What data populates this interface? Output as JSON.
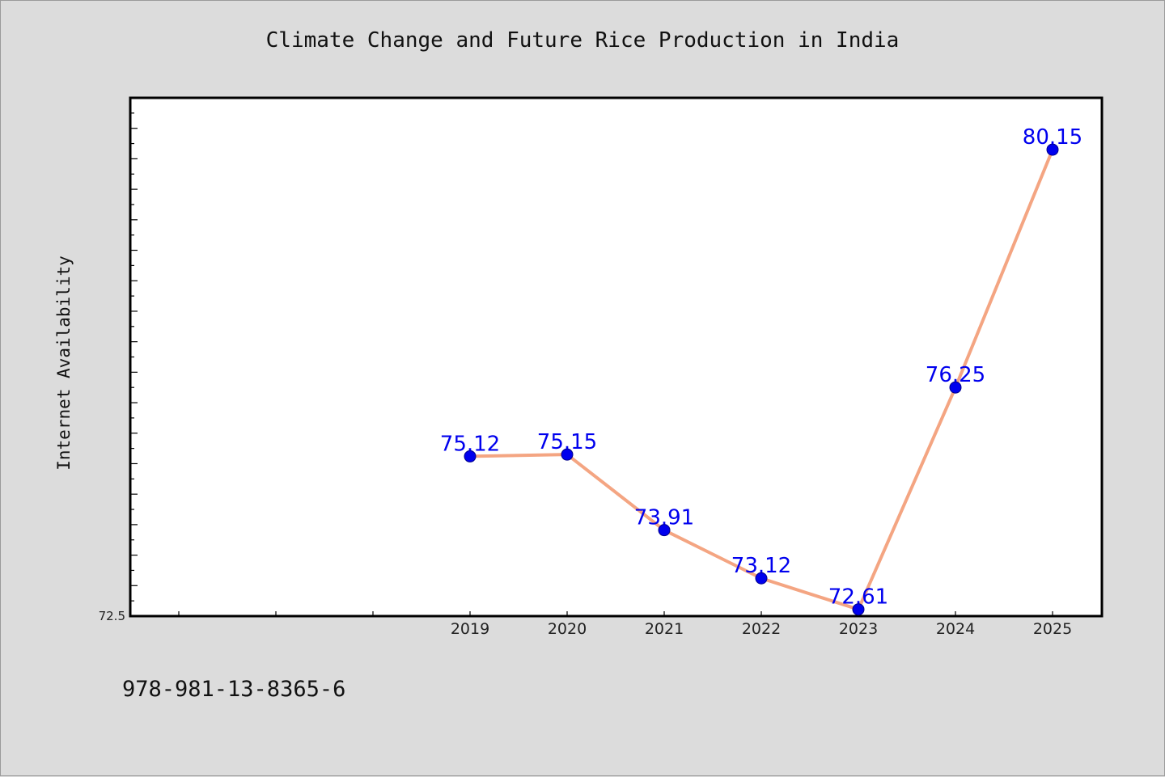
{
  "chart_data": {
    "type": "line",
    "title": "Climate Change and Future Rice Production in India",
    "xlabel": "",
    "ylabel": "Internet Availability",
    "x": [
      "2019",
      "2020",
      "2021",
      "2022",
      "2023",
      "2024",
      "2025"
    ],
    "series": [
      {
        "values": [
          75.12,
          75.15,
          73.91,
          73.12,
          72.61,
          76.25,
          80.15
        ],
        "data_labels": [
          "75.12",
          "75.15",
          "73.91",
          "73.12",
          "72.61",
          "76.25",
          "80.15"
        ]
      }
    ],
    "ylim": [
      72.5,
      81.0
    ],
    "y_tick_labels": [
      "72.5"
    ],
    "grid": false,
    "legend": "none",
    "colors": {
      "line": "#f4a582",
      "marker": "#0000ee",
      "data_label": "#0000ee",
      "plot_background": "#ffffff",
      "figure_background": "#dcdcdc"
    }
  },
  "footer": {
    "text": "978-981-13-8365-6"
  }
}
